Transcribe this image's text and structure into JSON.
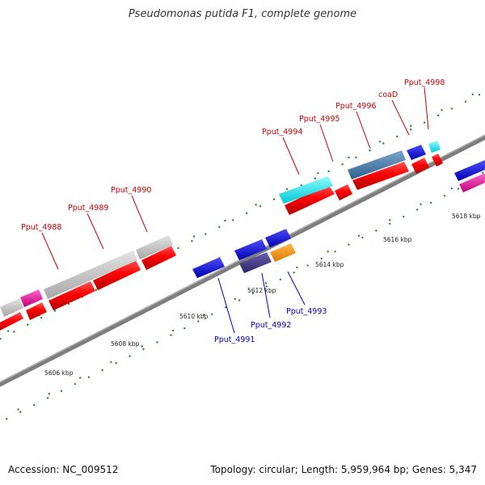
{
  "title": "Pseudomonas putida F1, complete genome",
  "footer": {
    "accession": "Accession: NC_009512",
    "summary": "Topology: circular; Length: 5,959,964 bp; Genes: 5,347"
  },
  "colors": {
    "forward_label": "#cc0000",
    "reverse_label": "#0000cc",
    "tick": "#1a7a1a",
    "backbone": "#7d7d7d"
  },
  "ticks": [
    "5606 kbp",
    "5608 kbp",
    "5610 kbp",
    "5612 kbp",
    "5614 kbp",
    "5616 kbp",
    "5618 kbp"
  ],
  "labels": {
    "pput_4988": "Pput_4988",
    "pput_4989": "Pput_4989",
    "pput_4990": "Pput_4990",
    "pput_4991": "Pput_4991",
    "pput_4992": "Pput_4992",
    "pput_4993": "Pput_4993",
    "pput_4994": "Pput_4994",
    "pput_4995": "Pput_4995",
    "pput_4996": "Pput_4996",
    "coaD": "coaD",
    "pput_4998": "Pput_4998"
  }
}
